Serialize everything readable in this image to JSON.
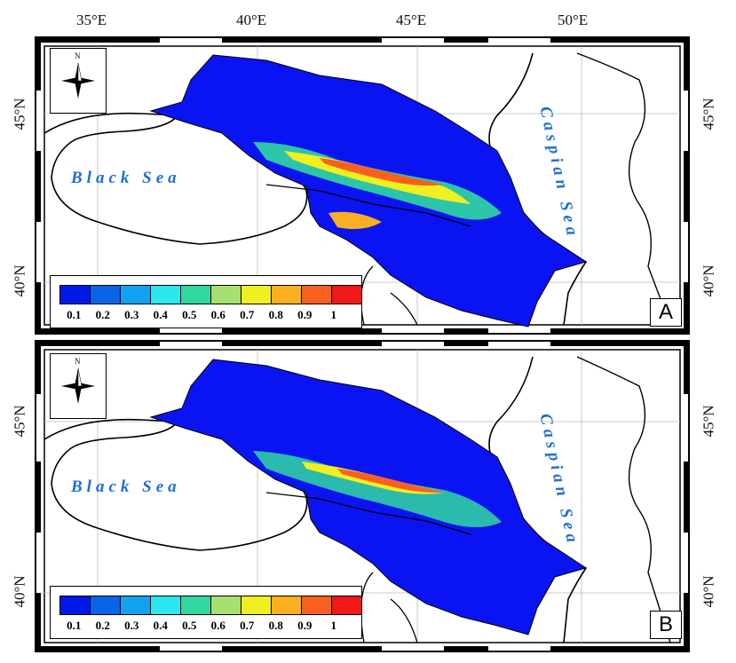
{
  "longitude_labels": [
    "35°E",
    "40°E",
    "45°E",
    "50°E"
  ],
  "latitude_labels": [
    "45°N",
    "40°N"
  ],
  "seas": {
    "black_sea": "Black Sea",
    "caspian_sea": "Caspian Sea"
  },
  "compass_label": "N",
  "legend": {
    "ticks": [
      "0.1",
      "0.2",
      "0.3",
      "0.4",
      "0.5",
      "0.6",
      "0.7",
      "0.8",
      "0.9",
      "1"
    ],
    "colors": [
      "#0018e8",
      "#0a64e8",
      "#12a2f0",
      "#2ae8ee",
      "#30d8a0",
      "#a8e070",
      "#f0f020",
      "#f8b020",
      "#f86020",
      "#f01818"
    ]
  },
  "panels": [
    {
      "letter": "A"
    },
    {
      "letter": "B"
    }
  ],
  "colors": {
    "region": "#0a14f2",
    "sea_label": "#1f6fd6"
  }
}
